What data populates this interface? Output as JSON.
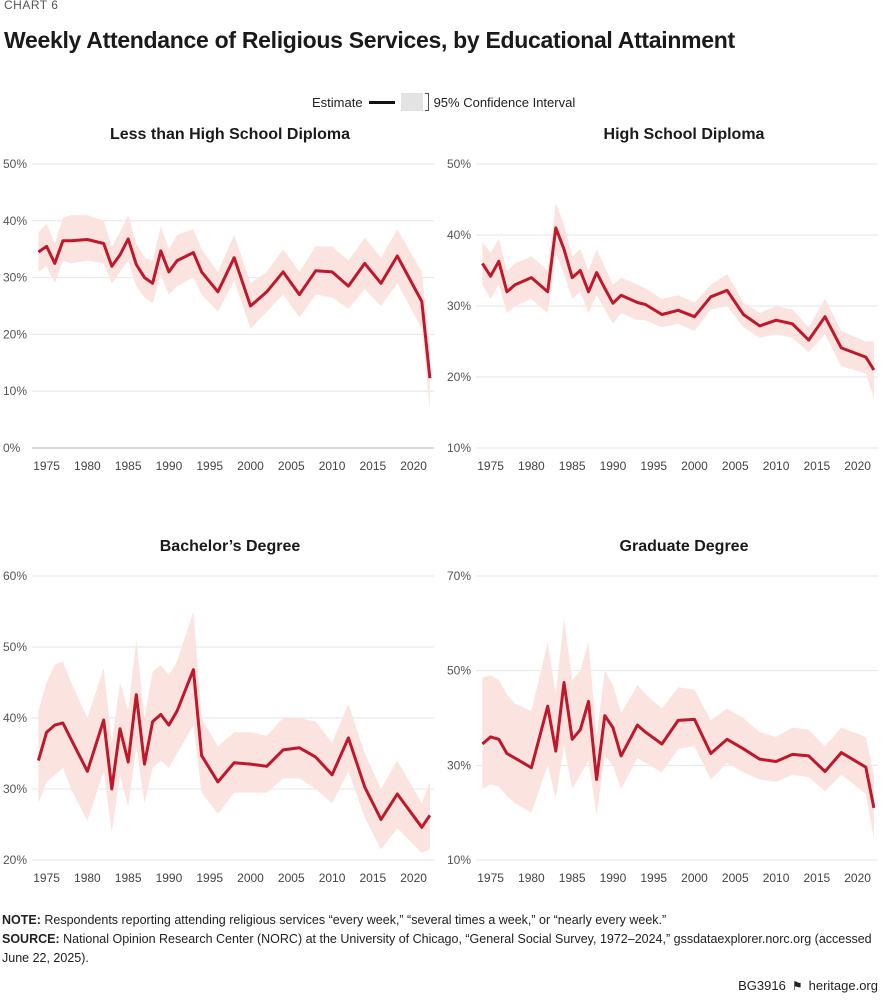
{
  "header": {
    "chart_label": "CHART 6",
    "title": "Weekly Attendance of Religious Services, by Educational Attainment"
  },
  "legend": {
    "estimate_label": "Estimate",
    "ci_label": "95% Confidence Interval"
  },
  "colors": {
    "estimate_line": "#c0182b",
    "ci_band": "#fbe3e0",
    "grid": "#e6e6e6"
  },
  "chart_data": [
    {
      "type": "line",
      "title": "Less than High School Diploma",
      "ylim": [
        0,
        50
      ],
      "yticks": [
        "0%",
        "10%",
        "20%",
        "30%",
        "40%",
        "50%"
      ],
      "ytick_values": [
        0,
        10,
        20,
        30,
        40,
        50
      ],
      "xlim": [
        1975,
        2022
      ],
      "xticks": [
        1975,
        1980,
        1985,
        1990,
        1995,
        2000,
        2005,
        2010,
        2015,
        2020
      ],
      "grid": true,
      "series": [
        {
          "x": [
            1974,
            1975,
            1976,
            1977,
            1978,
            1980,
            1982,
            1983,
            1984,
            1985,
            1986,
            1987,
            1988,
            1989,
            1990,
            1991,
            1993,
            1994,
            1996,
            1998,
            2000,
            2002,
            2004,
            2006,
            2008,
            2010,
            2012,
            2014,
            2016,
            2018,
            2021,
            2022
          ],
          "y": [
            34.5,
            35.5,
            32.5,
            36.5,
            36.5,
            36.7,
            36,
            32,
            34,
            36.8,
            32.3,
            30,
            29,
            34.7,
            31,
            33,
            34.4,
            31,
            27.5,
            33.5,
            25,
            27.5,
            31,
            27,
            31.2,
            31,
            28.5,
            32.5,
            29,
            33.8,
            25.8,
            12.3
          ],
          "lower": [
            31,
            32,
            29,
            33,
            32.5,
            33,
            32.5,
            29,
            31,
            33,
            28.5,
            26.5,
            25.5,
            30.5,
            27,
            28.5,
            30,
            27,
            24,
            29.5,
            21,
            24,
            27,
            23,
            27,
            26.5,
            24.5,
            28,
            25,
            29,
            21,
            7
          ],
          "upper": [
            38,
            39.5,
            36,
            40.5,
            41,
            41,
            40,
            35.5,
            38,
            41,
            36,
            33.5,
            33,
            39,
            35,
            37.5,
            38.5,
            35,
            31,
            37.5,
            29,
            31,
            35,
            31,
            35.5,
            35.5,
            33,
            37,
            33.5,
            38.5,
            31,
            17.5
          ]
        }
      ]
    },
    {
      "type": "line",
      "title": "High School Diploma",
      "ylim": [
        10,
        50
      ],
      "yticks": [
        "10%",
        "20%",
        "30%",
        "40%",
        "50%"
      ],
      "ytick_values": [
        10,
        20,
        30,
        40,
        50
      ],
      "xlim": [
        1975,
        2022
      ],
      "xticks": [
        1975,
        1980,
        1985,
        1990,
        1995,
        2000,
        2005,
        2010,
        2015,
        2020
      ],
      "grid": true,
      "series": [
        {
          "x": [
            1974,
            1975,
            1976,
            1977,
            1978,
            1980,
            1982,
            1983,
            1984,
            1985,
            1986,
            1987,
            1988,
            1989,
            1990,
            1991,
            1993,
            1994,
            1996,
            1998,
            2000,
            2002,
            2004,
            2006,
            2008,
            2010,
            2012,
            2014,
            2016,
            2018,
            2021,
            2022
          ],
          "y": [
            36,
            34.2,
            36.3,
            32,
            33,
            34,
            32,
            41,
            38,
            34,
            35,
            32,
            34.7,
            32.5,
            30.4,
            31.5,
            30.5,
            30.2,
            28.8,
            29.4,
            28.5,
            31.3,
            32.2,
            28.8,
            27.2,
            28,
            27.5,
            25.2,
            28.5,
            24.1,
            22.8,
            21
          ],
          "lower": [
            33,
            31,
            33,
            29,
            30,
            31,
            29,
            37.5,
            34.5,
            31,
            32,
            29,
            31.5,
            29.5,
            27.5,
            29,
            28,
            28,
            27,
            27.5,
            26.5,
            29.5,
            30,
            27,
            25.5,
            26,
            25.5,
            23.5,
            26,
            21.5,
            20.5,
            17
          ],
          "upper": [
            39,
            37.5,
            39.5,
            35,
            36,
            37,
            35,
            44.5,
            41.5,
            37,
            38,
            35,
            38,
            35.5,
            33,
            34,
            33,
            32.5,
            31,
            31.5,
            30.5,
            33,
            34.5,
            30.5,
            29,
            30,
            29.5,
            27,
            31,
            26.5,
            25,
            25
          ]
        }
      ]
    },
    {
      "type": "line",
      "title": "Bachelor’s Degree",
      "ylim": [
        20,
        60
      ],
      "yticks": [
        "20%",
        "30%",
        "40%",
        "50%",
        "60%"
      ],
      "ytick_values": [
        20,
        30,
        40,
        50,
        60
      ],
      "xlim": [
        1975,
        2022
      ],
      "xticks": [
        1975,
        1980,
        1985,
        1990,
        1995,
        2000,
        2005,
        2010,
        2015,
        2020
      ],
      "grid": true,
      "series": [
        {
          "x": [
            1974,
            1975,
            1976,
            1977,
            1978,
            1980,
            1982,
            1983,
            1984,
            1985,
            1986,
            1987,
            1988,
            1989,
            1990,
            1991,
            1993,
            1994,
            1996,
            1998,
            2000,
            2002,
            2004,
            2006,
            2008,
            2010,
            2012,
            2014,
            2016,
            2018,
            2021,
            2022
          ],
          "y": [
            34,
            38,
            39,
            39.3,
            37,
            32.5,
            39.7,
            30,
            38.5,
            33.8,
            43.3,
            33.5,
            39.5,
            40.5,
            39,
            41,
            46.8,
            34.7,
            31,
            33.7,
            33.5,
            33.2,
            35.5,
            35.8,
            34.5,
            32,
            37.2,
            30.3,
            25.7,
            29.3,
            24.6,
            26.3
          ],
          "lower": [
            28,
            31,
            32,
            33,
            30,
            25.5,
            32.5,
            24,
            32,
            27.5,
            36,
            28,
            33,
            34,
            33,
            35,
            39,
            29.5,
            26.5,
            29.5,
            29.5,
            29.5,
            31.5,
            31.5,
            30,
            28,
            32.5,
            26,
            21.5,
            24.5,
            21,
            21.5
          ],
          "upper": [
            41,
            45,
            47.5,
            48,
            45,
            40,
            47,
            36.5,
            45,
            41,
            51,
            40,
            46.5,
            47.5,
            46,
            48,
            55,
            40,
            36,
            38,
            38,
            37.5,
            40,
            40,
            39.5,
            36.5,
            42,
            35,
            30,
            34,
            28,
            31
          ]
        }
      ]
    },
    {
      "type": "line",
      "title": "Graduate Degree",
      "ylim": [
        10,
        70
      ],
      "yticks": [
        "10%",
        "30%",
        "50%",
        "70%"
      ],
      "ytick_values": [
        10,
        30,
        50,
        70
      ],
      "xlim": [
        1975,
        2022
      ],
      "xticks": [
        1975,
        1980,
        1985,
        1990,
        1995,
        2000,
        2005,
        2010,
        2015,
        2020
      ],
      "grid": true,
      "series": [
        {
          "x": [
            1974,
            1975,
            1976,
            1977,
            1978,
            1980,
            1982,
            1983,
            1984,
            1985,
            1986,
            1987,
            1988,
            1989,
            1990,
            1991,
            1993,
            1994,
            1996,
            1998,
            2000,
            2002,
            2004,
            2006,
            2008,
            2010,
            2012,
            2014,
            2016,
            2018,
            2021,
            2022
          ],
          "y": [
            34.5,
            36,
            35.5,
            32.5,
            31.5,
            29.5,
            42.5,
            33,
            47.5,
            35.5,
            37.5,
            43.5,
            27,
            40.5,
            38,
            32,
            38.5,
            37,
            34.5,
            39.5,
            39.7,
            32.5,
            35.5,
            33.5,
            31.3,
            30.8,
            32.3,
            32,
            28.7,
            32.7,
            29.6,
            21
          ],
          "lower": [
            25,
            26,
            25.5,
            23.5,
            22,
            20,
            30,
            23,
            34,
            25,
            28,
            31,
            19.5,
            32,
            30,
            25,
            31.5,
            30.5,
            28.5,
            33.5,
            34,
            27,
            30.5,
            28.5,
            27,
            26.5,
            28,
            27.5,
            24.5,
            28,
            24,
            14.5
          ],
          "upper": [
            48.5,
            49,
            48,
            45,
            43,
            41.5,
            56,
            45,
            61,
            48,
            50,
            56,
            36,
            50,
            47,
            41,
            47,
            45,
            42,
            46.5,
            46,
            39.5,
            42,
            40,
            37,
            36,
            38,
            37.5,
            34,
            38,
            36,
            28
          ]
        }
      ]
    }
  ],
  "note": {
    "note_label": "NOTE:",
    "note_text": "Respondents reporting attending religious services “every week,” “several times a week,” or “nearly every week.”",
    "source_label": "SOURCE:",
    "source_text": "National Opinion Research Center (NORC) at the University of Chicago, “General Social Survey, 1972–2024,” gssdataexplorer.norc.org (accessed June 22, 2025)."
  },
  "footer": {
    "code": "BG3916",
    "site": "heritage.org"
  }
}
